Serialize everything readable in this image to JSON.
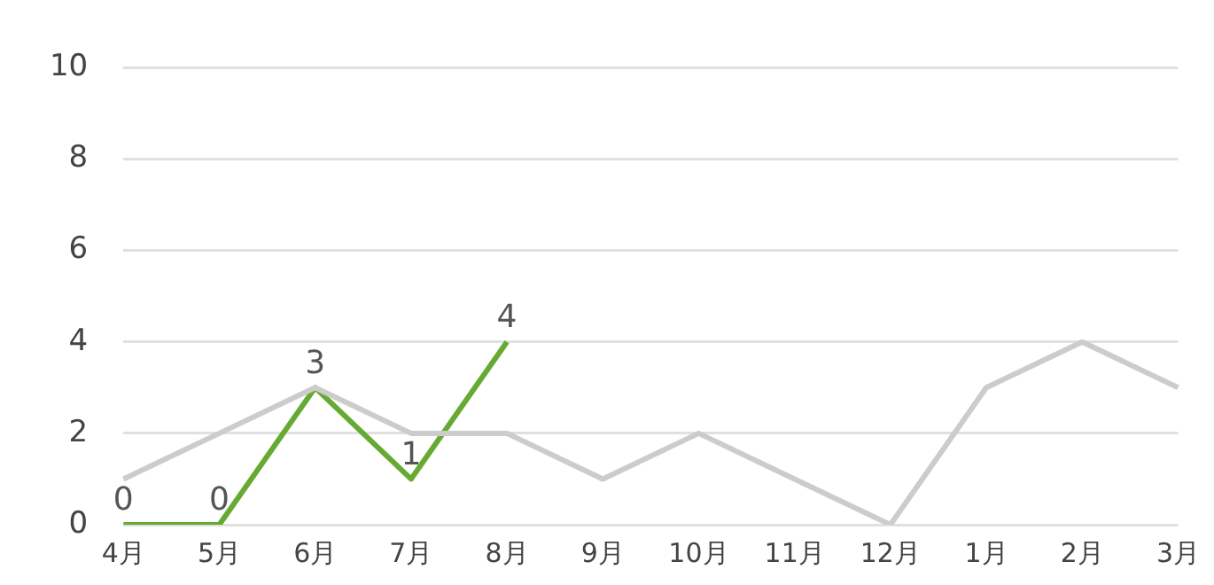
{
  "chart_data": {
    "type": "line",
    "categories": [
      "4月",
      "5月",
      "6月",
      "7月",
      "8月",
      "9月",
      "10月",
      "11月",
      "12月",
      "1月",
      "2月",
      "3月"
    ],
    "series": [
      {
        "color": "#cccccc",
        "values": [
          1,
          2,
          3,
          2,
          2,
          1,
          2,
          1,
          0,
          3,
          4,
          3
        ]
      },
      {
        "color": "#66aa33",
        "values": [
          0,
          0,
          3,
          1,
          4,
          null,
          null,
          null,
          null,
          null,
          null,
          null
        ],
        "value_labels": [
          "0",
          "0",
          "3",
          "1",
          "4",
          null,
          null,
          null,
          null,
          null,
          null,
          null
        ]
      }
    ],
    "ylim": [
      0,
      10
    ],
    "yticks": [
      0,
      2,
      4,
      6,
      8,
      10
    ],
    "grid": "y",
    "marker": "none"
  }
}
